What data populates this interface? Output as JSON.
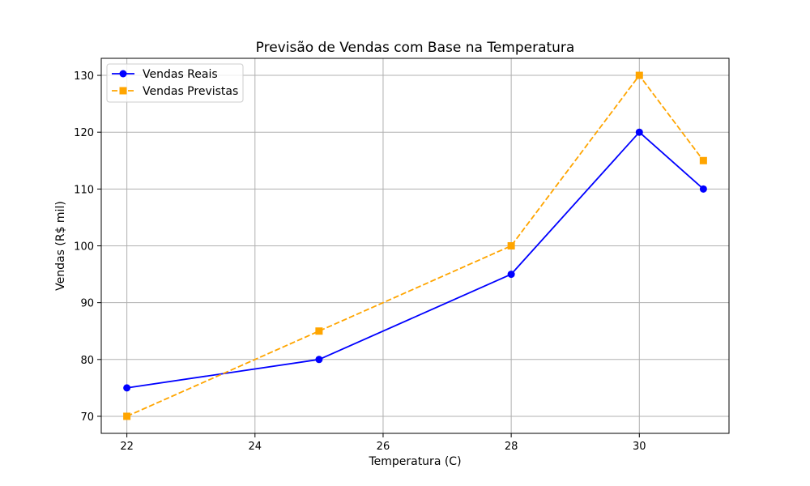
{
  "chart_data": {
    "type": "line",
    "title": "Previsão de Vendas com Base na Temperatura",
    "xlabel": "Temperatura (C)",
    "ylabel": "Vendas (R$ mil)",
    "x": [
      22,
      25,
      28,
      30,
      31
    ],
    "xlim": [
      21.6,
      31.4
    ],
    "ylim": [
      67,
      133
    ],
    "xticks": [
      22,
      24,
      26,
      28,
      30
    ],
    "yticks": [
      70,
      80,
      90,
      100,
      110,
      120,
      130
    ],
    "grid": true,
    "legend_position": "top-left",
    "series": [
      {
        "name": "Vendas Reais",
        "values": [
          75,
          80,
          95,
          120,
          110
        ],
        "color": "#0000ff",
        "line_style": "solid",
        "marker": "circle"
      },
      {
        "name": "Vendas Previstas",
        "values": [
          70,
          85,
          100,
          130,
          115
        ],
        "color": "#ffa500",
        "line_style": "dashed",
        "marker": "square"
      }
    ]
  }
}
